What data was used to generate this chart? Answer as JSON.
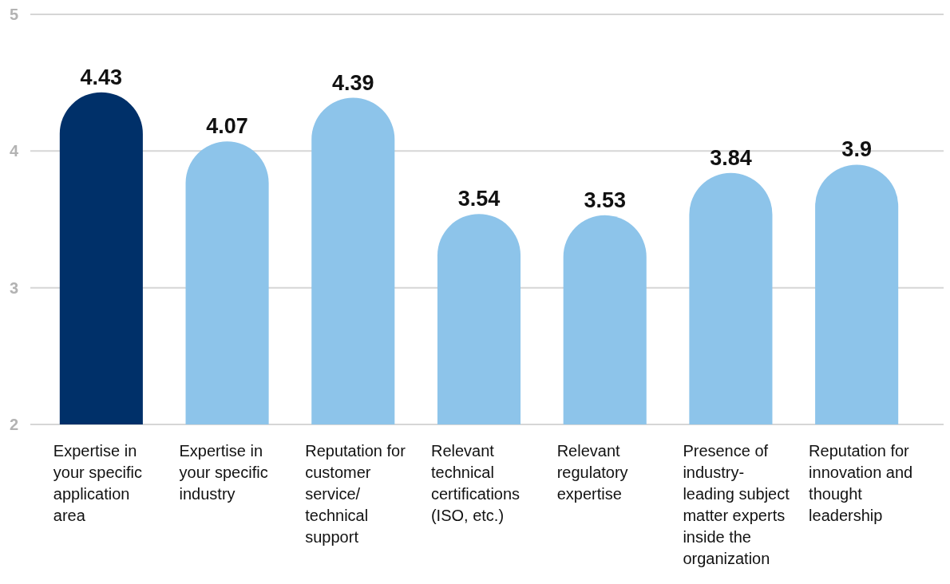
{
  "chart_data": {
    "type": "bar",
    "categories": [
      "Expertise in your specific application area",
      "Expertise in your specific industry",
      "Reputation for customer service/ technical support",
      "Relevant technical certifications (ISO, etc.)",
      "Relevant regulatory expertise",
      "Presence of industry-leading subject matter experts inside the organization",
      "Reputation for innovation and thought leadership"
    ],
    "values": [
      4.43,
      4.07,
      4.39,
      3.54,
      3.53,
      3.84,
      3.9
    ],
    "colors": [
      "#003069",
      "#8dc4ea",
      "#8dc4ea",
      "#8dc4ea",
      "#8dc4ea",
      "#8dc4ea",
      "#8dc4ea"
    ],
    "ylim": [
      2,
      5
    ],
    "yticks": [
      2,
      3,
      4,
      5
    ],
    "grid": "y",
    "data_labels": true
  }
}
